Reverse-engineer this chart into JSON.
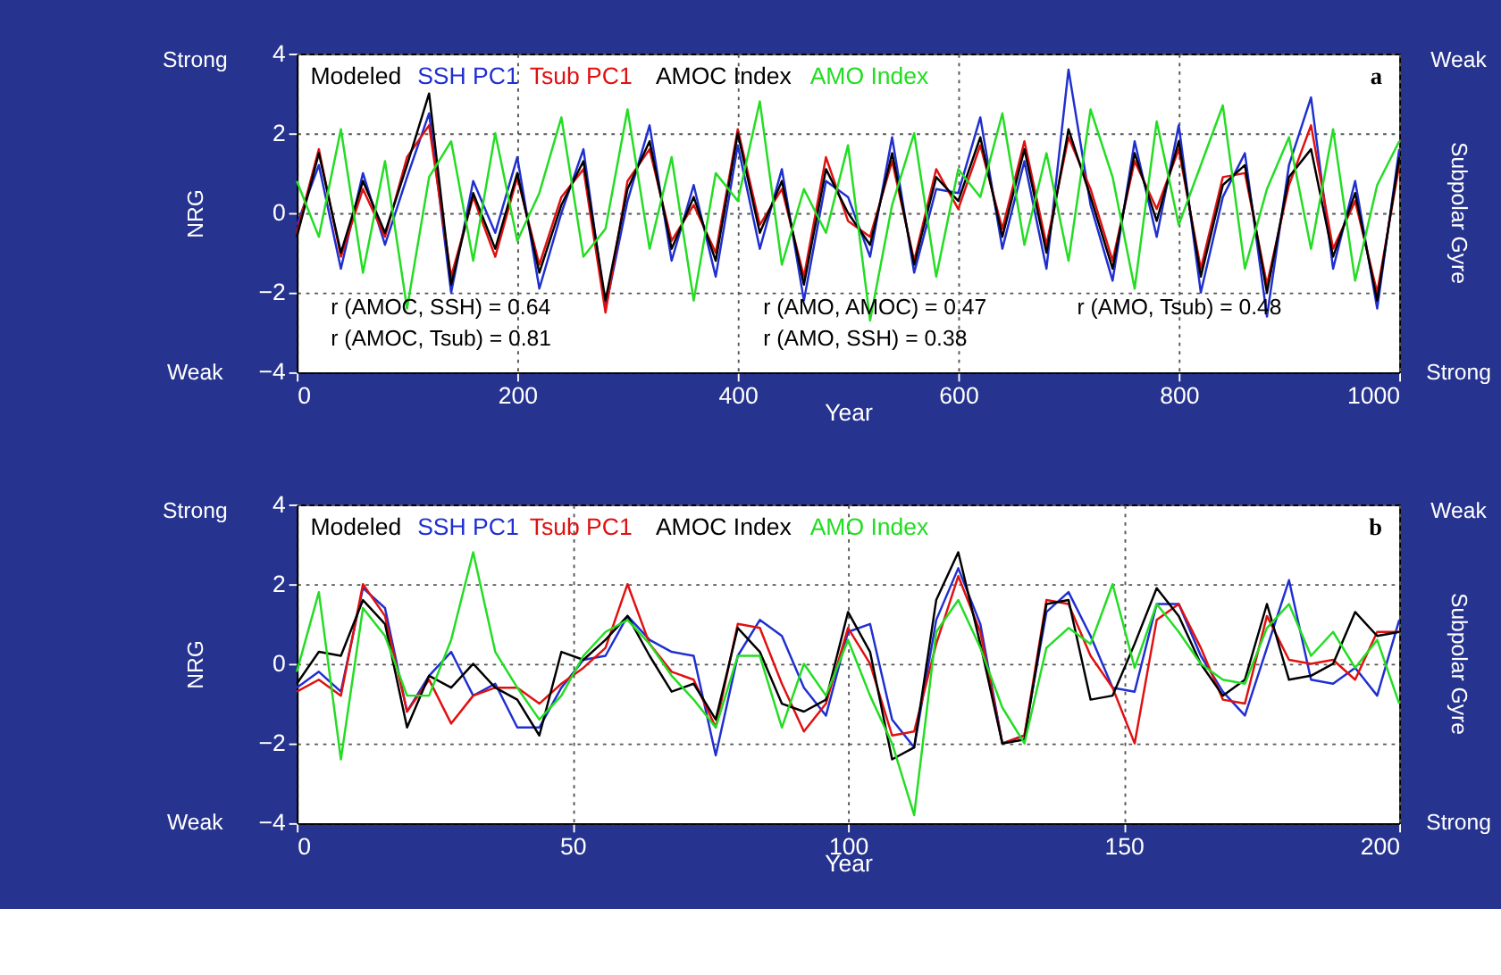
{
  "chart_data": [
    {
      "type": "line",
      "xlabel": "Year",
      "ylabel": "NRG",
      "y2label": "Subpolar Gyre",
      "xlim": [
        0,
        1000
      ],
      "xticks": [
        0,
        200,
        400,
        600,
        800,
        1000
      ],
      "ylim": [
        -4,
        4
      ],
      "yticks": [
        -4,
        -2,
        0,
        2,
        4
      ],
      "grid": true,
      "legend": "top left",
      "annotations": [
        "a",
        "Strong",
        "Weak",
        "Weak",
        "Strong",
        "Modeled",
        "r (AMOC, SSH) = 0.64",
        "r (AMOC, Tsub) = 0.81",
        "r (AMO, AMOC) = 0.47",
        "r (AMO, SSH) = 0.38",
        "r (AMO, Tsub) = 0.48"
      ],
      "x": [
        0,
        20,
        40,
        60,
        80,
        100,
        120,
        140,
        160,
        180,
        200,
        220,
        240,
        260,
        280,
        300,
        320,
        340,
        360,
        380,
        400,
        420,
        440,
        460,
        480,
        500,
        520,
        540,
        560,
        580,
        600,
        620,
        640,
        660,
        680,
        700,
        720,
        740,
        760,
        780,
        800,
        820,
        840,
        860,
        880,
        900,
        920,
        940,
        960,
        980,
        1000
      ],
      "series": [
        {
          "name": "SSH PC1",
          "color": "#1f2fd0",
          "values": [
            -0.3,
            1.2,
            -1.4,
            1.0,
            -0.8,
            0.9,
            2.5,
            -2.0,
            0.8,
            -0.5,
            1.4,
            -1.9,
            0.0,
            1.6,
            -2.4,
            0.3,
            2.2,
            -1.2,
            0.7,
            -1.6,
            1.7,
            -0.9,
            1.1,
            -2.2,
            0.8,
            0.4,
            -1.1,
            1.9,
            -1.5,
            0.6,
            0.5,
            2.4,
            -0.9,
            1.3,
            -1.4,
            3.6,
            0.2,
            -1.7,
            1.8,
            -0.6,
            2.2,
            -2.0,
            0.4,
            1.5,
            -2.6,
            1.2,
            2.9,
            -1.4,
            0.8,
            -2.4,
            1.6
          ]
        },
        {
          "name": "Tsub PC1",
          "color": "#e01010",
          "values": [
            -0.5,
            1.6,
            -1.1,
            0.6,
            -0.6,
            1.4,
            2.2,
            -1.6,
            0.4,
            -1.1,
            0.9,
            -1.3,
            0.4,
            1.1,
            -2.5,
            0.8,
            1.6,
            -0.7,
            0.2,
            -1.0,
            2.1,
            -0.3,
            0.6,
            -1.6,
            1.4,
            -0.2,
            -0.6,
            1.3,
            -1.2,
            1.1,
            0.1,
            1.7,
            -0.4,
            1.8,
            -0.8,
            1.9,
            0.6,
            -1.2,
            1.3,
            0.1,
            1.6,
            -1.4,
            0.9,
            1.0,
            -1.8,
            0.7,
            2.2,
            -0.9,
            0.3,
            -2.0,
            1.2
          ]
        },
        {
          "name": "AMOC Index",
          "color": "#000000",
          "values": [
            -0.6,
            1.5,
            -1.0,
            0.8,
            -0.5,
            1.2,
            3.0,
            -1.8,
            0.5,
            -0.9,
            1.0,
            -1.5,
            0.2,
            1.3,
            -2.2,
            0.6,
            1.8,
            -0.9,
            0.4,
            -1.2,
            2.0,
            -0.5,
            0.8,
            -1.8,
            1.1,
            0.0,
            -0.8,
            1.5,
            -1.3,
            0.9,
            0.3,
            1.9,
            -0.6,
            1.6,
            -1.0,
            2.1,
            0.4,
            -1.4,
            1.5,
            -0.2,
            1.8,
            -1.6,
            0.7,
            1.2,
            -2.0,
            0.9,
            1.6,
            -1.1,
            0.5,
            -2.2,
            1.4
          ]
        },
        {
          "name": "AMO Index",
          "color": "#22dd22",
          "values": [
            0.8,
            -0.6,
            2.1,
            -1.5,
            1.3,
            -2.4,
            0.9,
            1.8,
            -1.2,
            2.0,
            -0.7,
            0.5,
            2.4,
            -1.1,
            -0.4,
            2.6,
            -0.9,
            1.4,
            -2.2,
            1.0,
            0.3,
            2.8,
            -1.3,
            0.6,
            -0.5,
            1.7,
            -2.7,
            0.2,
            2.0,
            -1.6,
            1.1,
            0.4,
            2.5,
            -0.8,
            1.5,
            -1.2,
            2.6,
            0.9,
            -1.9,
            2.3,
            -0.3,
            1.2,
            2.7,
            -1.4,
            0.6,
            1.9,
            -0.9,
            2.1,
            -1.7,
            0.7,
            1.8
          ]
        }
      ]
    },
    {
      "type": "line",
      "xlabel": "Year",
      "ylabel": "NRG",
      "y2label": "Subpolar Gyre",
      "xlim": [
        0,
        200
      ],
      "xticks": [
        0,
        50,
        100,
        150,
        200
      ],
      "ylim": [
        -4,
        4
      ],
      "yticks": [
        -4,
        -2,
        0,
        2,
        4
      ],
      "grid": true,
      "legend": "top left",
      "annotations": [
        "b",
        "Strong",
        "Weak",
        "Weak",
        "Strong",
        "Modeled"
      ],
      "x": [
        0,
        4,
        8,
        12,
        16,
        20,
        24,
        28,
        32,
        36,
        40,
        44,
        48,
        52,
        56,
        60,
        64,
        68,
        72,
        76,
        80,
        84,
        88,
        92,
        96,
        100,
        104,
        108,
        112,
        116,
        120,
        124,
        128,
        132,
        136,
        140,
        144,
        148,
        152,
        156,
        160,
        164,
        168,
        172,
        176,
        180,
        184,
        188,
        192,
        196,
        200
      ],
      "series": [
        {
          "name": "SSH PC1",
          "color": "#1f2fd0",
          "values": [
            -0.6,
            -0.2,
            -0.7,
            1.9,
            1.4,
            -1.2,
            -0.3,
            0.3,
            -0.8,
            -0.5,
            -1.6,
            -1.6,
            -0.6,
            0.1,
            0.2,
            1.2,
            0.6,
            0.3,
            0.2,
            -2.3,
            0.2,
            1.1,
            0.7,
            -0.6,
            -1.3,
            0.8,
            1.0,
            -1.4,
            -2.1,
            1.1,
            2.4,
            1.0,
            -2.0,
            -1.8,
            1.3,
            1.8,
            0.7,
            -0.6,
            -0.7,
            1.5,
            1.5,
            0.2,
            -0.7,
            -1.3,
            0.4,
            2.1,
            -0.4,
            -0.5,
            -0.1,
            -0.8,
            1.1
          ]
        },
        {
          "name": "Tsub PC1",
          "color": "#e01010",
          "values": [
            -0.7,
            -0.4,
            -0.8,
            2.0,
            1.2,
            -1.2,
            -0.4,
            -1.5,
            -0.8,
            -0.6,
            -0.6,
            -1.0,
            -0.5,
            -0.1,
            0.4,
            2.0,
            0.5,
            -0.2,
            -0.4,
            -1.6,
            1.0,
            0.9,
            -0.5,
            -1.7,
            -1.0,
            0.9,
            0.0,
            -1.8,
            -1.7,
            0.5,
            2.2,
            0.8,
            -2.0,
            -1.8,
            1.6,
            1.5,
            0.2,
            -0.6,
            -2.0,
            1.1,
            1.5,
            0.4,
            -0.9,
            -1.0,
            1.2,
            0.1,
            0.0,
            0.1,
            -0.4,
            0.8,
            0.8
          ]
        },
        {
          "name": "AMOC Index",
          "color": "#000000",
          "values": [
            -0.5,
            0.3,
            0.2,
            1.6,
            1.0,
            -1.6,
            -0.3,
            -0.6,
            0.0,
            -0.6,
            -0.9,
            -1.8,
            0.3,
            0.1,
            0.6,
            1.2,
            0.2,
            -0.7,
            -0.5,
            -1.4,
            0.9,
            0.3,
            -1.0,
            -1.2,
            -0.9,
            1.3,
            0.3,
            -2.4,
            -2.1,
            1.6,
            2.8,
            0.5,
            -2.0,
            -1.9,
            1.5,
            1.6,
            -0.9,
            -0.8,
            0.5,
            1.9,
            1.2,
            0.0,
            -0.8,
            -0.4,
            1.5,
            -0.4,
            -0.3,
            0.0,
            1.3,
            0.7,
            0.8
          ]
        },
        {
          "name": "AMO Index",
          "color": "#22dd22",
          "values": [
            -0.2,
            1.8,
            -2.4,
            1.4,
            0.7,
            -0.8,
            -0.8,
            0.6,
            2.8,
            0.3,
            -0.6,
            -1.4,
            -0.8,
            0.2,
            0.8,
            1.1,
            0.5,
            -0.3,
            -0.9,
            -1.6,
            0.2,
            0.2,
            -1.6,
            0.0,
            -0.8,
            0.6,
            -0.8,
            -2.0,
            -3.8,
            0.8,
            1.6,
            0.4,
            -1.1,
            -2.0,
            0.4,
            0.9,
            0.5,
            2.0,
            -0.1,
            1.5,
            0.8,
            0.0,
            -0.4,
            -0.5,
            0.9,
            1.5,
            0.2,
            0.8,
            -0.1,
            0.6,
            -1.0
          ]
        }
      ]
    }
  ]
}
